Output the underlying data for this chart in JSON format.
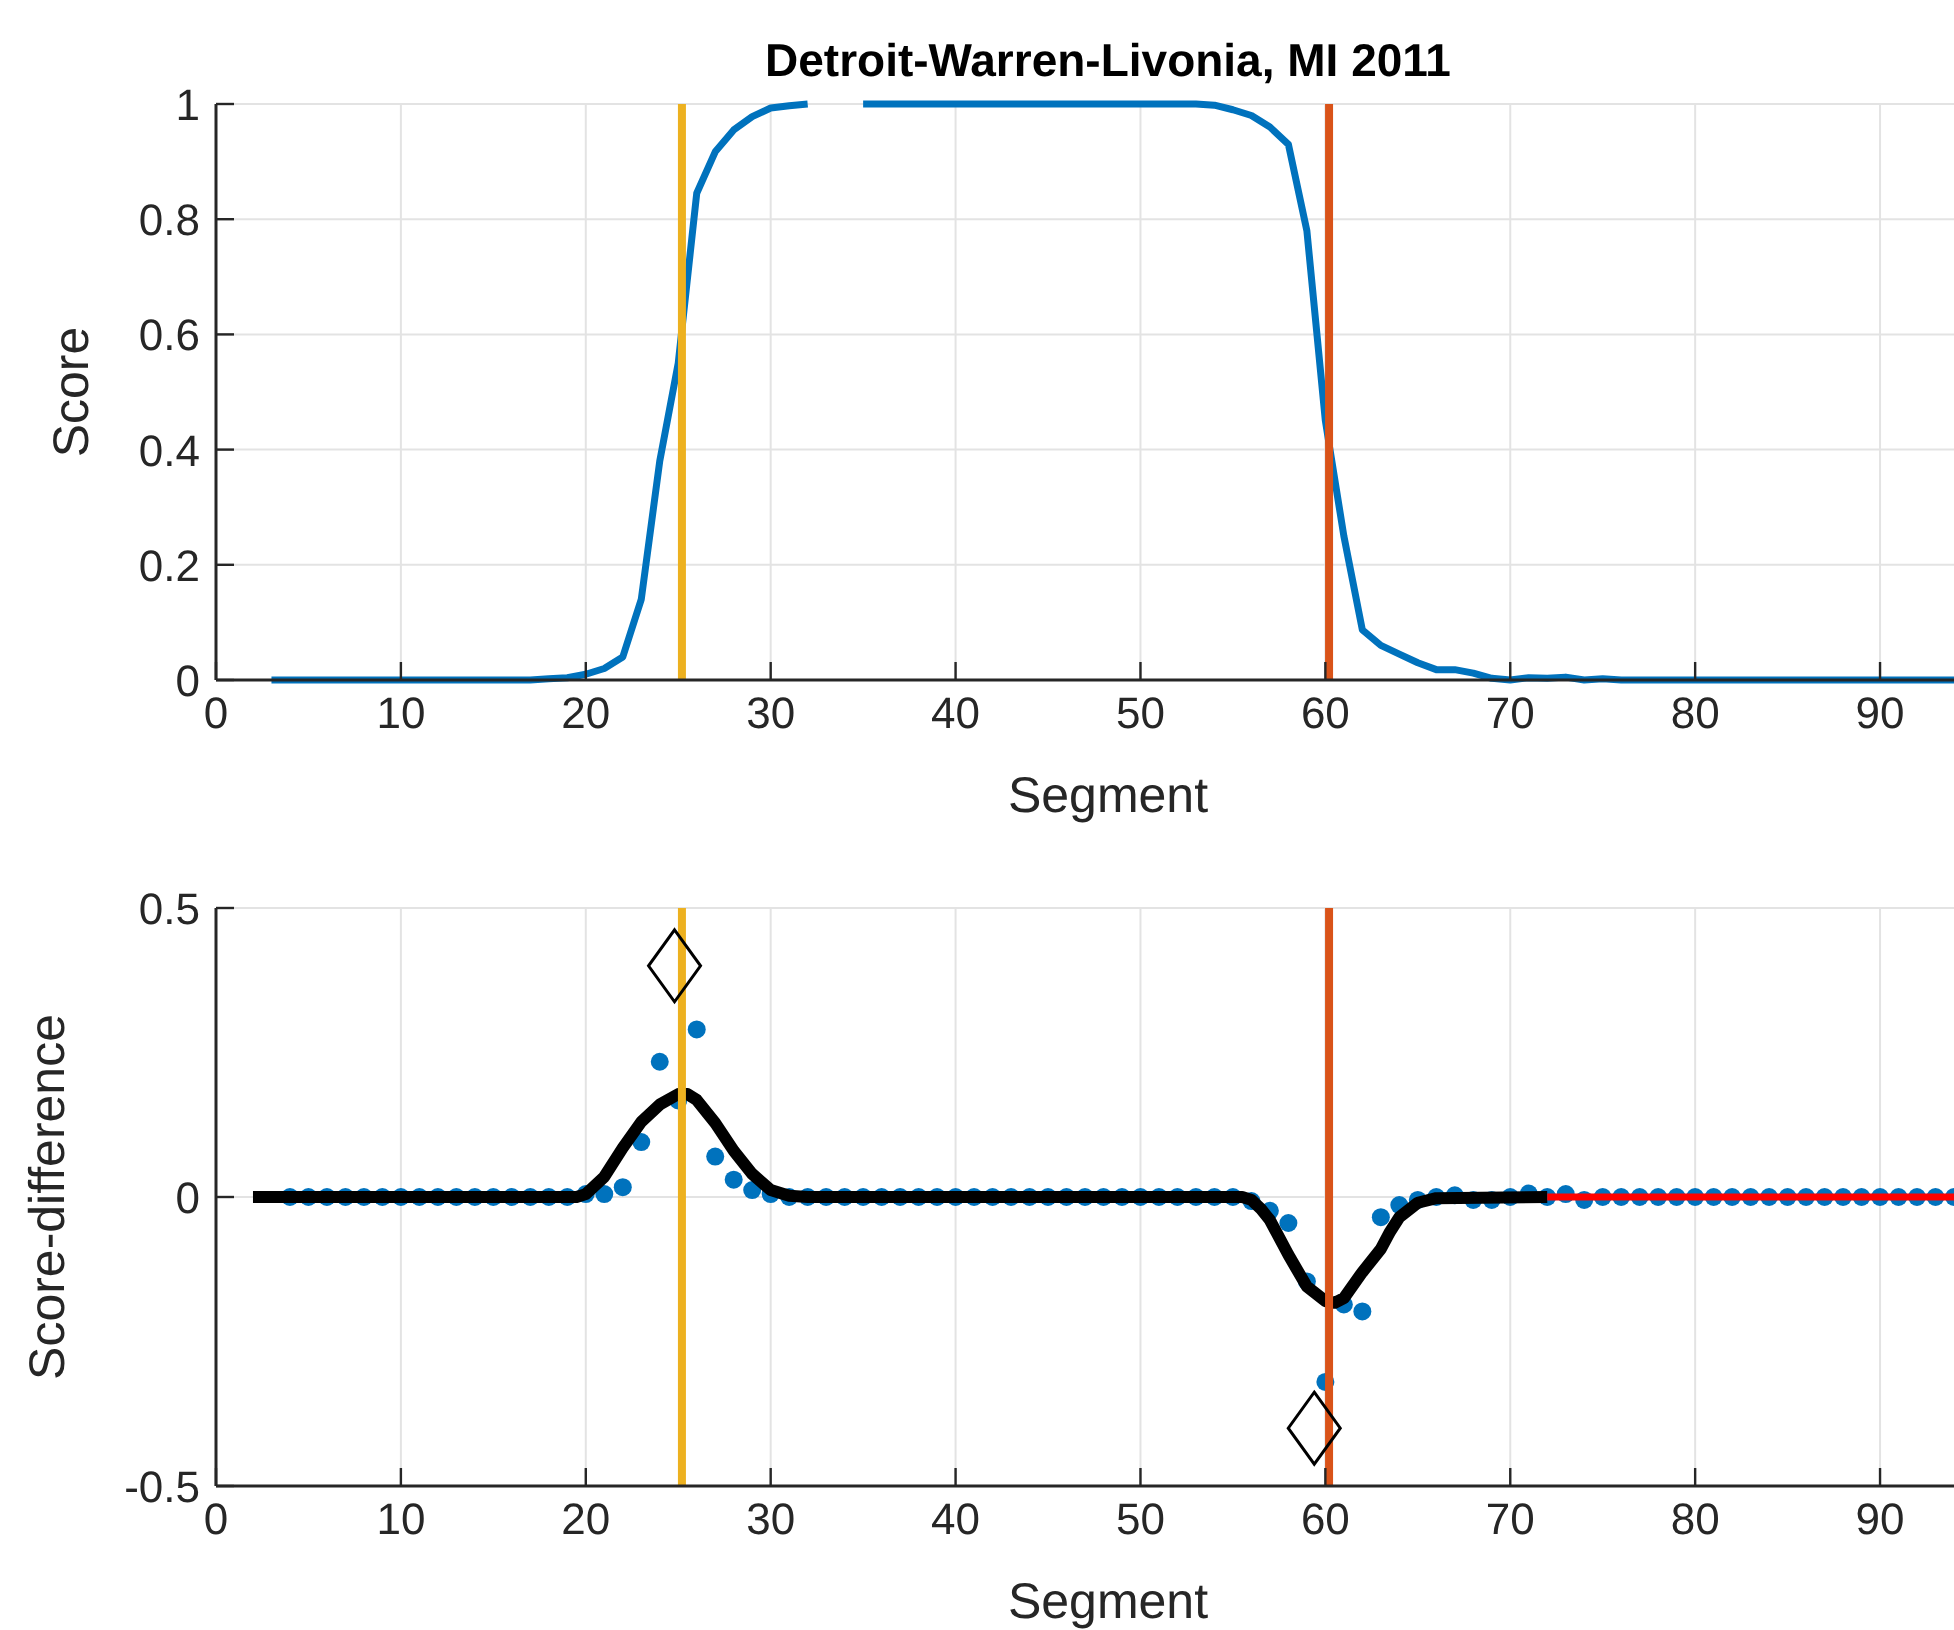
{
  "chart_data": [
    {
      "type": "line",
      "title": "Detroit-Warren-Livonia, MI 2011",
      "xlabel": "Segment",
      "ylabel": "Score",
      "x": [
        3,
        4,
        5,
        6,
        7,
        8,
        9,
        10,
        11,
        12,
        13,
        14,
        15,
        16,
        17,
        18,
        19,
        20,
        21,
        22,
        23,
        24,
        25,
        26,
        27,
        28,
        29,
        30,
        31,
        32,
        33,
        34,
        35,
        36,
        37,
        38,
        39,
        40,
        41,
        42,
        43,
        44,
        45,
        46,
        47,
        48,
        49,
        50,
        51,
        52,
        53,
        54,
        55,
        56,
        57,
        58,
        59,
        60,
        61,
        62,
        63,
        64,
        65,
        66,
        67,
        68,
        69,
        70,
        71,
        72,
        73,
        74,
        75,
        76,
        77,
        78,
        79,
        80,
        81,
        82,
        83,
        84,
        85,
        86,
        87,
        88,
        89,
        90,
        91,
        92,
        93,
        94
      ],
      "series": [
        {
          "color": "#0072bd",
          "values": [
            0,
            0,
            0,
            0,
            0,
            0,
            0,
            0,
            0,
            0,
            0,
            0,
            0,
            0,
            0,
            0.002,
            0.004,
            0.01,
            0.02,
            0.04,
            0.14,
            0.38,
            0.55,
            0.845,
            0.917,
            0.955,
            0.978,
            0.993,
            0.997,
            1,
            null,
            null,
            1,
            1,
            1,
            1,
            1,
            1,
            1,
            1,
            1,
            1,
            1,
            1,
            1,
            1,
            1,
            1,
            1,
            1,
            1,
            0.998,
            0.99,
            0.98,
            0.96,
            0.93,
            0.78,
            0.45,
            0.25,
            0.087,
            0.06,
            0.045,
            0.03,
            0.018,
            0.018,
            0.012,
            0.003,
            0,
            0.004,
            0.003,
            0.005,
            0,
            0.002,
            0,
            0,
            0,
            0,
            0,
            0,
            0,
            0,
            0,
            0,
            0,
            0,
            0,
            0,
            0,
            0,
            0,
            0,
            0
          ]
        }
      ],
      "xlim": [
        0,
        94
      ],
      "xticks": [
        0,
        10,
        20,
        30,
        40,
        50,
        60,
        70,
        80,
        90
      ],
      "ylim": [
        0,
        1
      ],
      "yticks": [
        0,
        0.2,
        0.4,
        0.6,
        0.8,
        1
      ],
      "grid": true,
      "line_style": "solid",
      "ref_lines": [
        {
          "axis": "x",
          "value": 25.2,
          "color": "#edb120"
        },
        {
          "axis": "x",
          "value": 60.2,
          "color": "#d95319"
        }
      ]
    },
    {
      "type": "scatter",
      "xlabel": "Segment",
      "ylabel": "Score-difference",
      "series": [
        {
          "color": "#0072bd",
          "marker": "circle",
          "x": [
            4,
            5,
            6,
            7,
            8,
            9,
            10,
            11,
            12,
            13,
            14,
            15,
            16,
            17,
            18,
            19,
            20,
            21,
            22,
            23,
            24,
            25,
            26,
            27,
            28,
            29,
            30,
            31,
            32,
            33,
            34,
            35,
            36,
            37,
            38,
            39,
            40,
            41,
            42,
            43,
            44,
            45,
            46,
            47,
            48,
            49,
            50,
            51,
            52,
            53,
            54,
            55,
            56,
            57,
            58,
            59,
            60,
            61,
            62,
            63,
            64,
            65,
            66,
            67,
            68,
            69,
            70,
            71,
            72,
            73,
            74,
            75,
            76,
            77,
            78,
            79,
            80,
            81,
            82,
            83,
            84,
            85,
            86,
            87,
            88,
            89,
            90,
            91,
            92,
            93,
            94
          ],
          "values": [
            0,
            0,
            0,
            0,
            0,
            0,
            0,
            0,
            0,
            0,
            0,
            0,
            0,
            0,
            0,
            0,
            0.005,
            0.005,
            0.017,
            0.095,
            0.234,
            0.167,
            0.29,
            0.07,
            0.03,
            0.012,
            0.005,
            0,
            0,
            0,
            0,
            0,
            0,
            0,
            0,
            0,
            0,
            0,
            0,
            0,
            0,
            0,
            0,
            0,
            0,
            0,
            0,
            0,
            0,
            0,
            0,
            0,
            -0.007,
            -0.024,
            -0.045,
            -0.146,
            -0.32,
            -0.186,
            -0.198,
            -0.035,
            -0.014,
            -0.005,
            0,
            0.003,
            -0.005,
            -0.005,
            0,
            0.006,
            0,
            0.005,
            -0.005,
            0,
            0,
            0,
            0,
            0,
            0,
            0,
            0,
            0,
            0,
            0,
            0,
            0,
            0,
            0,
            0,
            0,
            0,
            0,
            0
          ]
        },
        {
          "type": "line",
          "color": "#000000",
          "x": [
            2,
            19.5,
            20,
            21,
            22,
            23,
            24,
            25,
            25.5,
            26,
            27,
            28,
            29,
            30,
            31,
            32,
            55.5,
            56,
            56.5,
            57,
            58,
            59,
            60,
            60.5,
            61,
            62,
            63,
            63.5,
            64,
            65,
            66,
            72
          ],
          "values": [
            0,
            0,
            0.005,
            0.035,
            0.085,
            0.13,
            0.16,
            0.178,
            0.178,
            0.168,
            0.128,
            0.08,
            0.04,
            0.012,
            0.002,
            0,
            0,
            -0.005,
            -0.02,
            -0.04,
            -0.1,
            -0.155,
            -0.18,
            -0.183,
            -0.175,
            -0.13,
            -0.09,
            -0.06,
            -0.035,
            -0.01,
            -0.002,
            0
          ]
        },
        {
          "type": "line",
          "color": "#ff0000",
          "x": [
            72,
            94
          ],
          "values": [
            0,
            0
          ]
        },
        {
          "color": "#000000",
          "marker": "diamond",
          "x": [
            24.8,
            59.4
          ],
          "values": [
            0.4,
            -0.4
          ]
        }
      ],
      "xlim": [
        0,
        94
      ],
      "xticks": [
        0,
        10,
        20,
        30,
        40,
        50,
        60,
        70,
        80,
        90
      ],
      "ylim": [
        -0.5,
        0.5
      ],
      "yticks": [
        -0.5,
        0,
        0.5
      ],
      "grid": true,
      "line_style": "solid",
      "ref_lines": [
        {
          "axis": "x",
          "value": 25.2,
          "color": "#edb120"
        },
        {
          "axis": "x",
          "value": 60.2,
          "color": "#d95319"
        }
      ]
    }
  ]
}
